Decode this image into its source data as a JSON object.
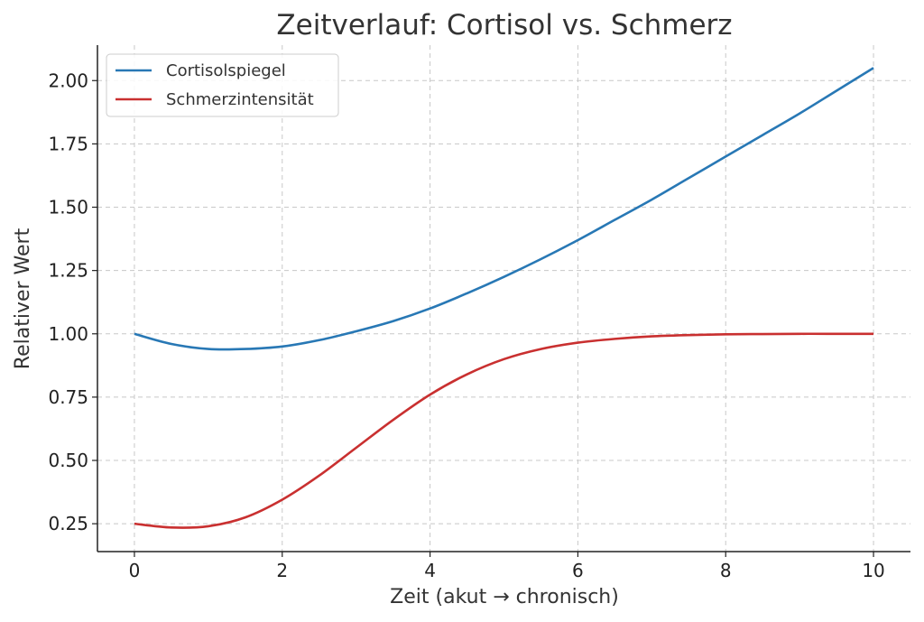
{
  "chart_data": {
    "type": "line",
    "title": "Zeitverlauf: Cortisol vs. Schmerz",
    "xlabel": "Zeit (akut → chronisch)",
    "ylabel": "Relativer Wert",
    "xlim": [
      -0.5,
      10.5
    ],
    "ylim": [
      0.14,
      2.14
    ],
    "xticks": [
      0,
      2,
      4,
      6,
      8,
      10
    ],
    "xtick_labels": [
      "0",
      "2",
      "4",
      "6",
      "8",
      "10"
    ],
    "yticks": [
      0.25,
      0.5,
      0.75,
      1.0,
      1.25,
      1.5,
      1.75,
      2.0
    ],
    "ytick_labels": [
      "0.25",
      "0.50",
      "0.75",
      "1.00",
      "1.25",
      "1.50",
      "1.75",
      "2.00"
    ],
    "grid": true,
    "legend_position": "top-left",
    "x": [
      0,
      0.5,
      1,
      1.5,
      2,
      2.5,
      3,
      3.5,
      4,
      4.5,
      5,
      5.5,
      6,
      6.5,
      7,
      7.5,
      8,
      8.5,
      9,
      9.5,
      10
    ],
    "series": [
      {
        "name": "Cortisolspiegel",
        "color": "#2878b5",
        "values": [
          1.0,
          0.96,
          0.94,
          0.94,
          0.95,
          0.975,
          1.01,
          1.05,
          1.1,
          1.16,
          1.225,
          1.295,
          1.37,
          1.45,
          1.53,
          1.615,
          1.7,
          1.785,
          1.87,
          1.96,
          2.05
        ]
      },
      {
        "name": "Schmerzintensität",
        "color": "#c93030",
        "values": [
          0.25,
          0.235,
          0.24,
          0.275,
          0.345,
          0.44,
          0.55,
          0.66,
          0.76,
          0.84,
          0.9,
          0.94,
          0.965,
          0.98,
          0.99,
          0.995,
          0.998,
          0.999,
          1.0,
          1.0,
          1.0
        ]
      }
    ]
  }
}
